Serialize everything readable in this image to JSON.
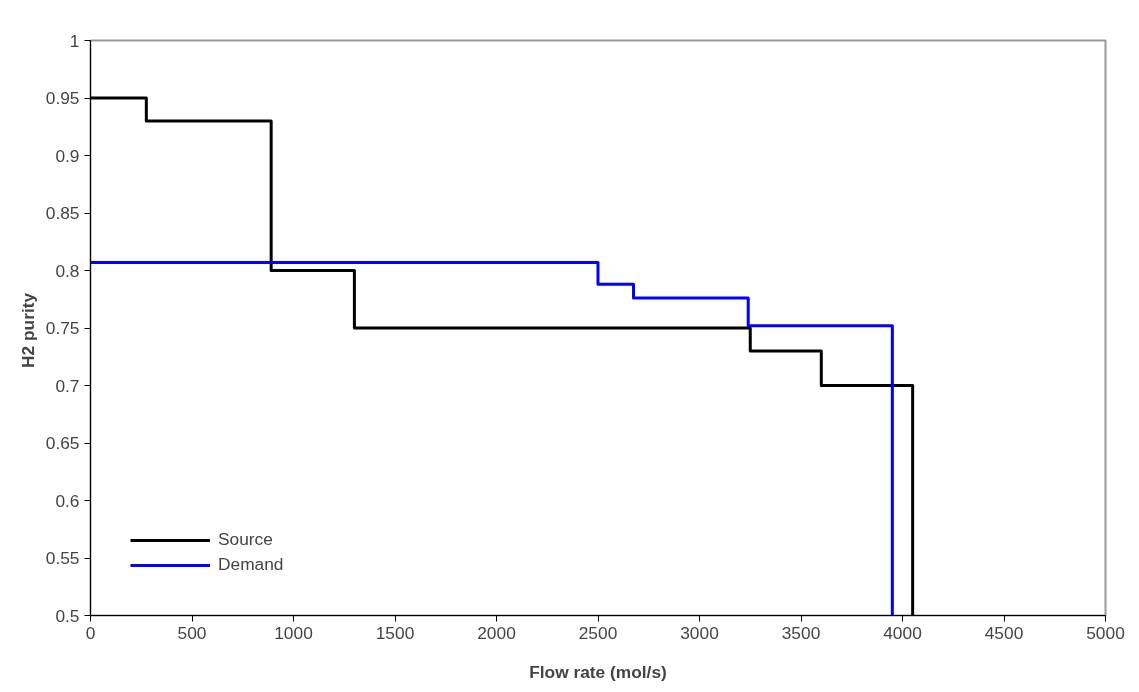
{
  "chart_data": {
    "type": "step",
    "xlabel": "Flow rate (mol/s)",
    "ylabel": "H2  purity",
    "xlim": [
      0,
      5000
    ],
    "xticks": [
      0,
      500,
      1000,
      1500,
      2000,
      2500,
      3000,
      3500,
      4000,
      4500,
      5000
    ],
    "ylim": [
      0.5,
      1
    ],
    "yticks": [
      0.5,
      0.55,
      0.6,
      0.65,
      0.7,
      0.75,
      0.8,
      0.85,
      0.9,
      0.95,
      1
    ],
    "grid": false,
    "legend": "bottom left",
    "line_style": "solid",
    "marker": "none",
    "series": [
      {
        "name": "Source",
        "color": "#000000",
        "x": [
          0,
          275,
          890,
          1300,
          3250,
          3600,
          4050
        ],
        "values": [
          0.95,
          0.93,
          0.8,
          0.75,
          0.73,
          0.7,
          0.5
        ]
      },
      {
        "name": "Demand",
        "color": "#0000ff",
        "x": [
          0,
          2500,
          2675,
          3240,
          3950
        ],
        "values": [
          0.807,
          0.788,
          0.776,
          0.752,
          0.5
        ]
      }
    ]
  }
}
